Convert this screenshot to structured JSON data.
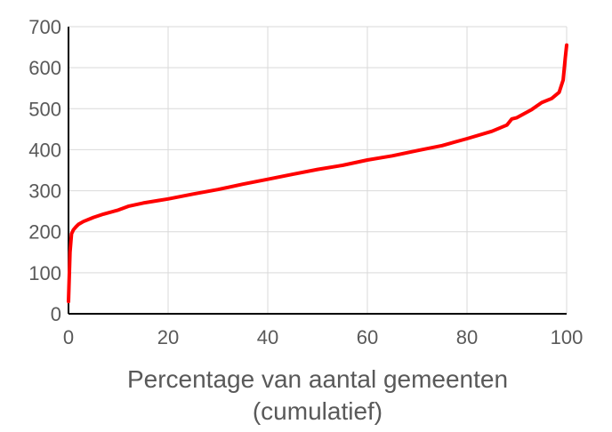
{
  "chart_data": {
    "type": "line",
    "title": "",
    "xlabel": "Percentage van aantal gemeenten",
    "xlabel_line2": "(cumulatief)",
    "ylabel": "",
    "xlim": [
      0,
      100
    ],
    "ylim": [
      0,
      700
    ],
    "x_ticks": [
      0,
      20,
      40,
      60,
      80,
      100
    ],
    "y_ticks": [
      0,
      100,
      200,
      300,
      400,
      500,
      600,
      700
    ],
    "grid": true,
    "legend": "none",
    "series": [
      {
        "color": "#ff0000",
        "x": [
          0,
          0.3,
          0.6,
          1,
          1.5,
          2,
          3,
          5,
          7,
          10,
          12,
          15,
          18,
          20,
          25,
          30,
          35,
          40,
          45,
          50,
          55,
          60,
          65,
          70,
          75,
          80,
          85,
          88,
          89,
          90,
          93,
          95,
          97,
          98.5,
          99.3,
          99.7,
          100
        ],
        "y": [
          30,
          150,
          195,
          205,
          212,
          218,
          225,
          235,
          243,
          253,
          262,
          270,
          276,
          280,
          292,
          303,
          316,
          328,
          340,
          352,
          362,
          375,
          385,
          398,
          410,
          427,
          445,
          460,
          475,
          478,
          498,
          515,
          525,
          540,
          570,
          620,
          655
        ]
      }
    ]
  }
}
